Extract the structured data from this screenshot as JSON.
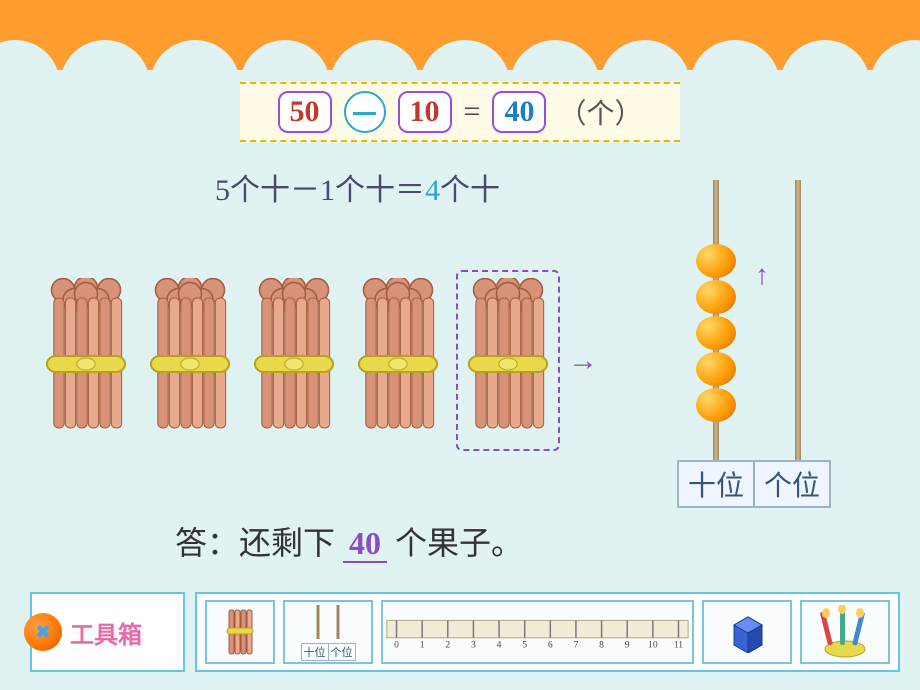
{
  "theme": {
    "slide_bg": "#e0f2f2",
    "header_bg": "#ff9d2e",
    "box_border": "#9b4de0",
    "circle_border": "#2aa8cc",
    "dashed_border": "#8a4dbf",
    "strip_bg": "#fffbe6",
    "strip_border": "#e6b800",
    "place_border": "#9bb3cc",
    "toolbox_border": "#68c5df",
    "bead_color": "#ff9900",
    "cube_color": "#3a62d8"
  },
  "equation": {
    "a": "50",
    "op": "－",
    "b": "10",
    "eq": "=",
    "result": "40",
    "unit": "（个）",
    "a_color": "#c0392b",
    "b_color": "#c0392b",
    "result_color": "#1f7dc4"
  },
  "explanation": {
    "full_pre": "5个十－1个十＝",
    "result_num": "4",
    "result_suffix": "个十"
  },
  "bundles": {
    "count": 5,
    "removed_index": 4,
    "arrow": "→"
  },
  "abacus": {
    "tens_beads": 5,
    "ones_beads": 0,
    "move_arrow": "↑",
    "tens_label": "十位",
    "ones_label": "个位"
  },
  "answer": {
    "prefix": "答：还剩下",
    "value": "40",
    "suffix": "个果子。"
  },
  "toolbox": {
    "title": "工具箱",
    "mini_tens": "十位",
    "mini_ones": "个位",
    "ruler_labels": [
      "0",
      "1",
      "2",
      "3",
      "4",
      "5",
      "6",
      "7",
      "8",
      "9",
      "10",
      "11"
    ]
  }
}
